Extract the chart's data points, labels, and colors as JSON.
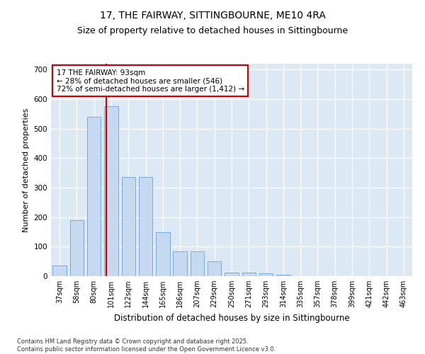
{
  "title_line1": "17, THE FAIRWAY, SITTINGBOURNE, ME10 4RA",
  "title_line2": "Size of property relative to detached houses in Sittingbourne",
  "xlabel": "Distribution of detached houses by size in Sittingbourne",
  "ylabel": "Number of detached properties",
  "categories": [
    "37sqm",
    "58sqm",
    "80sqm",
    "101sqm",
    "122sqm",
    "144sqm",
    "165sqm",
    "186sqm",
    "207sqm",
    "229sqm",
    "250sqm",
    "271sqm",
    "293sqm",
    "314sqm",
    "335sqm",
    "357sqm",
    "378sqm",
    "399sqm",
    "421sqm",
    "442sqm",
    "463sqm"
  ],
  "values": [
    35,
    190,
    540,
    575,
    335,
    335,
    150,
    85,
    85,
    50,
    13,
    13,
    10,
    5,
    0,
    0,
    0,
    0,
    0,
    0,
    0
  ],
  "bar_color": "#c5d9f0",
  "bar_edge_color": "#7aaadc",
  "bg_color": "#dce9f5",
  "fig_bg_color": "#ffffff",
  "vline_color": "#cc0000",
  "annotation_text": "17 THE FAIRWAY: 93sqm\n← 28% of detached houses are smaller (546)\n72% of semi-detached houses are larger (1,412) →",
  "annotation_box_edge_color": "#cc0000",
  "ylim": [
    0,
    720
  ],
  "yticks": [
    0,
    100,
    200,
    300,
    400,
    500,
    600,
    700
  ],
  "title_fontsize": 10,
  "subtitle_fontsize": 9,
  "axis_label_fontsize": 8,
  "tick_fontsize": 7,
  "annotation_fontsize": 7.5,
  "footnote": "Contains HM Land Registry data © Crown copyright and database right 2025.\nContains public sector information licensed under the Open Government Licence v3.0.",
  "footnote_fontsize": 6,
  "bar_width": 0.8,
  "vline_pos": 2.73
}
